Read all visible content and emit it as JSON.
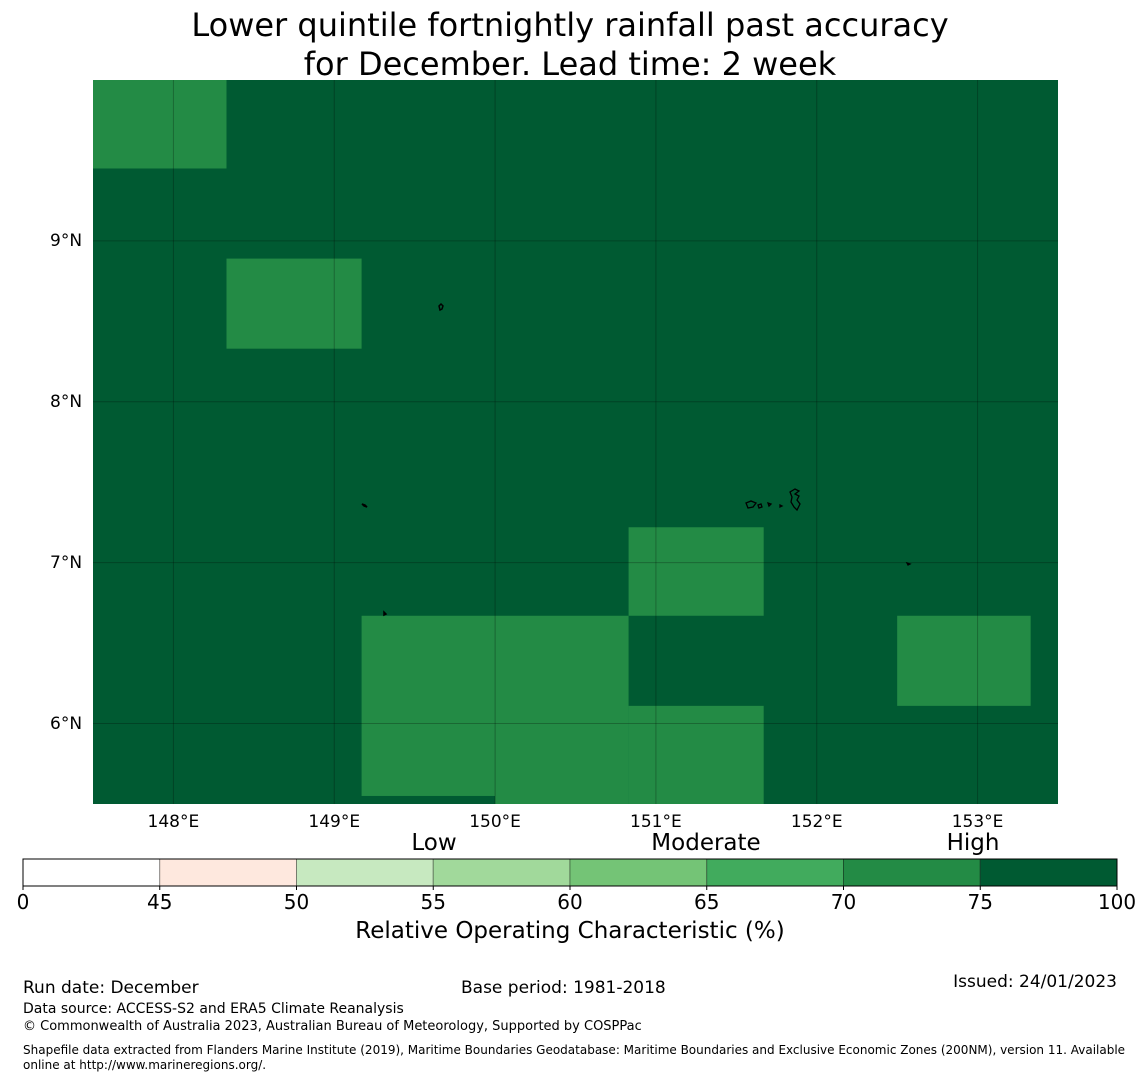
{
  "title": {
    "line1": "Lower quintile fortnightly rainfall past accuracy",
    "line2": "for December. Lead time: 2 week"
  },
  "map": {
    "lon_range": [
      147.5,
      153.5
    ],
    "lat_range": [
      5.5,
      10.0
    ],
    "lat_ticks": [
      "9°N",
      "8°N",
      "7°N",
      "6°N"
    ],
    "lon_ticks": [
      "148°E",
      "149°E",
      "150°E",
      "151°E",
      "152°E",
      "153°E"
    ],
    "background_color": "#005a32",
    "grid_cells_70_75": [
      {
        "lon": [
          147.5,
          148.33
        ],
        "lat": [
          9.45,
          10.0
        ]
      },
      {
        "lon": [
          148.33,
          149.17
        ],
        "lat": [
          8.33,
          8.89
        ]
      },
      {
        "lon": [
          150.83,
          151.67
        ],
        "lat": [
          6.67,
          7.22
        ]
      },
      {
        "lon": [
          149.17,
          150.0
        ],
        "lat": [
          5.55,
          6.67
        ]
      },
      {
        "lon": [
          150.0,
          150.83
        ],
        "lat": [
          5.5,
          6.67
        ]
      },
      {
        "lon": [
          150.83,
          151.67
        ],
        "lat": [
          5.5,
          6.11
        ]
      },
      {
        "lon": [
          152.5,
          153.33
        ],
        "lat": [
          6.11,
          6.67
        ]
      }
    ]
  },
  "colorbar": {
    "category_labels": [
      "Low",
      "Moderate",
      "High"
    ],
    "ticks": [
      "0",
      "45",
      "50",
      "55",
      "60",
      "65",
      "70",
      "75",
      "100"
    ],
    "colors": [
      "#ffffff",
      "#fee8de",
      "#c7e9c0",
      "#a1d99b",
      "#74c476",
      "#41ab5d",
      "#238b45",
      "#005a32"
    ],
    "label": "Relative Operating Characteristic (%)"
  },
  "footer": {
    "run_date": "Run date: December",
    "base_period": "Base period: 1981-2018",
    "issued": "Issued: 24/01/2023",
    "data_source": "Data source: ACCESS-S2 and ERA5 Climate Reanalysis",
    "copyright": "© Commonwealth of Australia 2023, Australian Bureau of Meteorology, Supported by COSPPac",
    "shapefile_line1": "Shapefile data extracted from Flanders Marine Institute (2019), Maritime Boundaries Geodatabase: Maritime Boundaries and Exclusive Economic Zones (200NM), version 11. Available",
    "shapefile_line2": "online at http://www.marineregions.org/."
  }
}
